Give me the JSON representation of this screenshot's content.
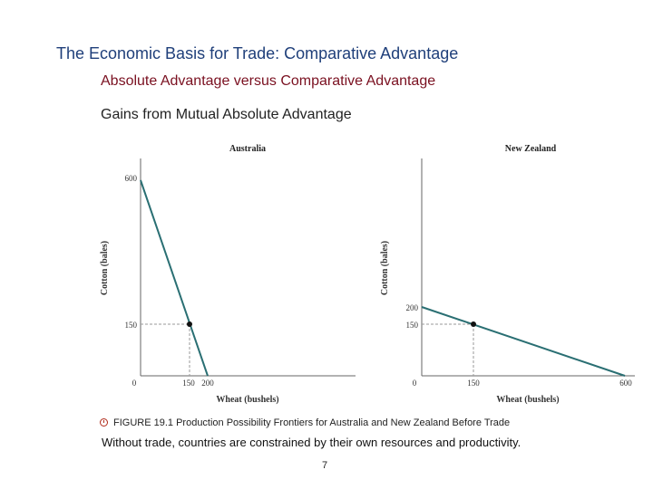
{
  "slide": {
    "title": "The Economic Basis for Trade:  Comparative Advantage",
    "subtitle": "Absolute Advantage versus Comparative Advantage",
    "section": "Gains from Mutual Absolute Advantage",
    "caption": "FIGURE 19.1  Production Possibility Frontiers for Australia and New Zealand Before Trade",
    "note": "Without trade, countries are constrained by their own resources and productivity.",
    "page_number": "7"
  },
  "colors": {
    "frontier": "#2a6f73",
    "axis": "#666666",
    "guide": "#999999",
    "point": "#111111"
  },
  "chart_data": [
    {
      "type": "line",
      "title": "Australia",
      "xlabel": "Wheat (bushels)",
      "ylabel": "Cotton (bales)",
      "x": [
        0,
        200
      ],
      "y": [
        600,
        0
      ],
      "point": {
        "x": 150,
        "y": 150
      },
      "xticks": [
        "0",
        "150",
        "200"
      ],
      "yticks": [
        "600",
        "150"
      ],
      "grid": false
    },
    {
      "type": "line",
      "title": "New Zealand",
      "xlabel": "Wheat (bushels)",
      "ylabel": "Cotton (bales)",
      "x": [
        0,
        600
      ],
      "y": [
        200,
        0
      ],
      "point": {
        "x": 150,
        "y": 150
      },
      "xticks": [
        "0",
        "150",
        "600"
      ],
      "yticks": [
        "200",
        "150"
      ],
      "grid": false
    }
  ]
}
